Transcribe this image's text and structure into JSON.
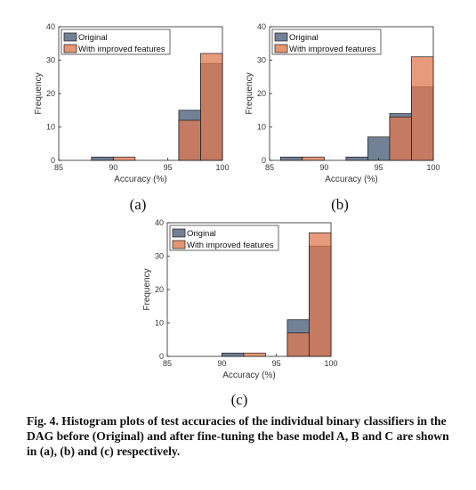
{
  "charts": [
    {
      "type": "bar",
      "panel_label": "(a)",
      "xlabel": "Accuracy (%)",
      "ylabel": "Frequency",
      "xlim": [
        85,
        100
      ],
      "ylim": [
        0,
        40
      ],
      "xticks": [
        85,
        90,
        95,
        100
      ],
      "yticks": [
        0,
        10,
        20,
        30,
        40
      ],
      "legend_position": "top-left",
      "bin_edges": [
        88,
        90,
        92,
        94,
        96,
        98,
        100
      ],
      "series": [
        {
          "name": "Original",
          "color": "#6a7a90",
          "values": [
            1,
            0,
            0,
            0,
            15,
            29
          ]
        },
        {
          "name": "With improved features",
          "color": "#e07a50",
          "values": [
            0,
            1,
            0,
            0,
            12,
            32
          ]
        }
      ]
    },
    {
      "type": "bar",
      "panel_label": "(b)",
      "xlabel": "Accuracy (%)",
      "ylabel": "Frequency",
      "xlim": [
        85,
        100
      ],
      "ylim": [
        0,
        40
      ],
      "xticks": [
        85,
        90,
        95,
        100
      ],
      "yticks": [
        0,
        10,
        20,
        30,
        40
      ],
      "legend_position": "top-left",
      "bin_edges": [
        86,
        88,
        90,
        92,
        94,
        96,
        98,
        100
      ],
      "series": [
        {
          "name": "Original",
          "color": "#6a7a90",
          "values": [
            1,
            0,
            0,
            1,
            7,
            14,
            22
          ]
        },
        {
          "name": "With improved features",
          "color": "#e07a50",
          "values": [
            0,
            1,
            0,
            0,
            0,
            13,
            31
          ]
        }
      ]
    },
    {
      "type": "bar",
      "panel_label": "(c)",
      "xlabel": "Accuracy (%)",
      "ylabel": "Frequency",
      "xlim": [
        85,
        100
      ],
      "ylim": [
        0,
        40
      ],
      "xticks": [
        85,
        90,
        95,
        100
      ],
      "yticks": [
        0,
        10,
        20,
        30,
        40
      ],
      "legend_position": "top-left",
      "bin_edges": [
        90,
        92,
        94,
        96,
        98,
        100
      ],
      "series": [
        {
          "name": "Original",
          "color": "#6a7a90",
          "values": [
            1,
            0,
            0,
            11,
            33
          ]
        },
        {
          "name": "With improved features",
          "color": "#e07a50",
          "values": [
            0,
            1,
            0,
            7,
            37
          ]
        }
      ]
    }
  ],
  "caption": "Fig. 4. Histogram plots of test accuracies of the individual binary classifiers in the DAG before (Original) and after fine-tuning the base model A, B and C are shown in (a), (b) and (c) respectively."
}
